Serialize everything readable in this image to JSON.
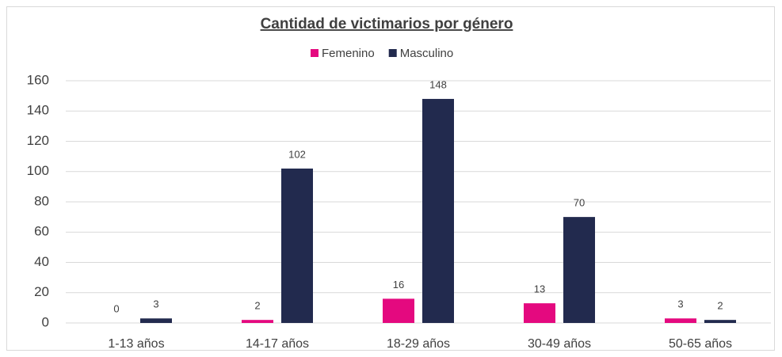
{
  "chart_data": {
    "type": "bar",
    "title": "Cantidad de victimarios por género",
    "categories": [
      "1-13 años",
      "14-17 años",
      "18-29 años",
      "30-49 años",
      "50-65 años"
    ],
    "series": [
      {
        "name": "Femenino",
        "color": "#e4097f",
        "values": [
          0,
          2,
          16,
          13,
          3
        ]
      },
      {
        "name": "Masculino",
        "color": "#222a4e",
        "values": [
          3,
          102,
          148,
          70,
          2
        ]
      }
    ],
    "ylim": [
      0,
      160
    ],
    "yticks": [
      0,
      20,
      40,
      60,
      80,
      100,
      120,
      140,
      160
    ],
    "grid": true,
    "legend": "top"
  }
}
